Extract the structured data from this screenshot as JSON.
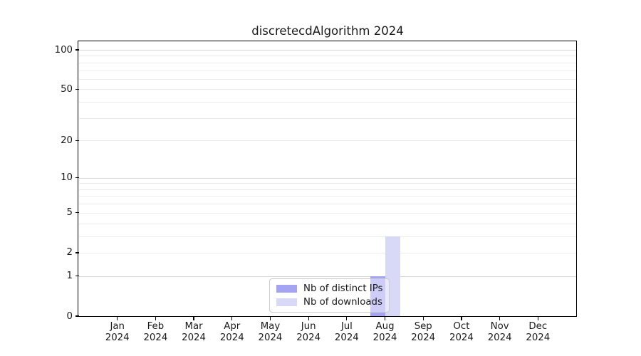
{
  "chart_data": {
    "type": "bar",
    "title": "discretecdAlgorithm 2024",
    "categories": [
      "Jan",
      "Feb",
      "Mar",
      "Apr",
      "May",
      "Jun",
      "Jul",
      "Aug",
      "Sep",
      "Oct",
      "Nov",
      "Dec"
    ],
    "year": "2024",
    "series": [
      {
        "name": "Nb of distinct IPs",
        "color": "#a4a4f2",
        "values": [
          0,
          0,
          0,
          0,
          0,
          0,
          0,
          1,
          0,
          0,
          0,
          0
        ]
      },
      {
        "name": "Nb of downloads",
        "color": "#d8d8f7",
        "values": [
          0,
          0,
          0,
          0,
          0,
          0,
          0,
          3,
          0,
          0,
          0,
          0
        ]
      }
    ],
    "xlabel": "",
    "ylabel": "",
    "yscale": "log10(1+x)",
    "ylim": [
      0,
      115
    ],
    "yticks": [
      0,
      1,
      2,
      5,
      10,
      20,
      50,
      100
    ],
    "major_gridlines": [
      1,
      10,
      100
    ],
    "minor_gridlines": [
      2,
      3,
      4,
      5,
      6,
      7,
      8,
      9,
      20,
      30,
      40,
      50,
      60,
      70,
      80,
      90
    ],
    "grid": "on",
    "legend_position": "lower center (inside plot)"
  },
  "appearance": {
    "background": "#ffffff",
    "axis_color": "#000000",
    "text_color": "#1a1a1a",
    "gridline_major_color": "#d6d6d6",
    "gridline_minor_color": "#ececec",
    "legend_border_color": "#cccccc"
  }
}
